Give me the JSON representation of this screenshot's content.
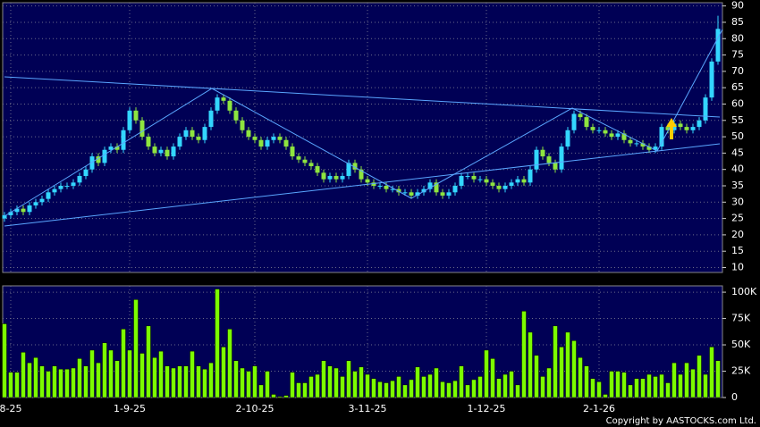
{
  "chart_data": {
    "type": "candlestick",
    "categories": [
      null,
      "8-25",
      null,
      null,
      null,
      null,
      null,
      null,
      null,
      null,
      null,
      null,
      null,
      null,
      null,
      null,
      null,
      null,
      null,
      null,
      "1-9-25",
      null,
      null,
      null,
      null,
      null,
      null,
      null,
      null,
      null,
      null,
      null,
      null,
      null,
      null,
      null,
      null,
      null,
      null,
      null,
      "2-10-25",
      null,
      null,
      null,
      null,
      null,
      null,
      null,
      null,
      null,
      null,
      null,
      null,
      null,
      null,
      null,
      null,
      null,
      "3-11-25",
      null,
      null,
      null,
      null,
      null,
      null,
      null,
      null,
      null,
      null,
      null,
      null,
      null,
      null,
      null,
      null,
      null,
      null,
      "1-12-25",
      null,
      null,
      null,
      null,
      null,
      null,
      null,
      null,
      null,
      null,
      null,
      null,
      null,
      null,
      null,
      null,
      null,
      "2-1-26",
      null,
      null,
      null,
      null,
      null,
      null,
      null,
      null,
      null,
      null,
      null,
      null,
      null,
      null,
      null,
      null,
      null,
      null,
      null
    ],
    "open": [
      25,
      26,
      27,
      28,
      27,
      29,
      30,
      31,
      33,
      34,
      35,
      35,
      36,
      38,
      40,
      44,
      42,
      46,
      47,
      46,
      52,
      58,
      55,
      50,
      47,
      45,
      46,
      44,
      47,
      50,
      52,
      50,
      49,
      53,
      58,
      62,
      61,
      58,
      55,
      52,
      50,
      49,
      47,
      49,
      50,
      49,
      47,
      44,
      43,
      42,
      41,
      39,
      37,
      38,
      37,
      38,
      42,
      40,
      37,
      36,
      35,
      35,
      34,
      34,
      33,
      33,
      32,
      33,
      34,
      36,
      33,
      32,
      33,
      35,
      38,
      38,
      37,
      37,
      36,
      35,
      34,
      35,
      36,
      37,
      36,
      40,
      46,
      44,
      42,
      40,
      47,
      52,
      57,
      56,
      53,
      52,
      52,
      51,
      50,
      51,
      49,
      48,
      48,
      47,
      46,
      47,
      53,
      52,
      54,
      53,
      52,
      53,
      55,
      62,
      73
    ],
    "high": [
      27,
      28,
      29,
      29,
      30,
      31,
      32,
      34,
      35,
      36,
      36,
      37,
      39,
      41,
      45,
      45,
      47,
      48,
      48,
      53,
      59,
      59,
      56,
      51,
      48,
      47,
      47,
      48,
      51,
      53,
      53,
      51,
      54,
      59,
      63,
      63,
      62,
      59,
      56,
      53,
      51,
      50,
      50,
      51,
      51,
      50,
      48,
      45,
      44,
      43,
      42,
      40,
      39,
      39,
      39,
      43,
      43,
      41,
      38,
      37,
      36,
      36,
      35,
      35,
      34,
      34,
      34,
      35,
      37,
      37,
      34,
      34,
      36,
      39,
      39,
      39,
      38,
      38,
      37,
      36,
      36,
      37,
      38,
      38,
      41,
      47,
      47,
      45,
      43,
      48,
      53,
      58,
      58,
      57,
      54,
      53,
      53,
      52,
      52,
      52,
      50,
      49,
      49,
      48,
      48,
      54,
      54,
      55,
      55,
      54,
      54,
      56,
      63,
      74,
      87
    ],
    "low": [
      24,
      25,
      26,
      26,
      26,
      28,
      29,
      30,
      32,
      33,
      34,
      34,
      35,
      37,
      39,
      41,
      41,
      45,
      45,
      45,
      51,
      54,
      49,
      46,
      44,
      44,
      43,
      43,
      46,
      49,
      49,
      48,
      48,
      52,
      57,
      60,
      57,
      54,
      51,
      49,
      48,
      46,
      46,
      48,
      48,
      46,
      43,
      42,
      41,
      40,
      38,
      36,
      36,
      36,
      36,
      37,
      39,
      36,
      35,
      34,
      34,
      33,
      33,
      32,
      32,
      31,
      31,
      32,
      33,
      32,
      31,
      31,
      32,
      34,
      37,
      36,
      36,
      35,
      34,
      33,
      33,
      34,
      35,
      35,
      35,
      39,
      43,
      41,
      39,
      39,
      46,
      51,
      55,
      52,
      51,
      51,
      50,
      49,
      49,
      48,
      47,
      47,
      46,
      45,
      45,
      46,
      51,
      51,
      52,
      51,
      51,
      52,
      54,
      61,
      72
    ],
    "close": [
      26,
      27,
      28,
      27,
      29,
      30,
      31,
      33,
      34,
      35,
      35,
      36,
      38,
      40,
      44,
      42,
      46,
      47,
      46,
      52,
      58,
      55,
      50,
      47,
      45,
      46,
      44,
      47,
      50,
      52,
      50,
      49,
      53,
      58,
      62,
      61,
      58,
      55,
      52,
      50,
      49,
      47,
      49,
      50,
      49,
      47,
      44,
      43,
      42,
      41,
      39,
      37,
      38,
      37,
      38,
      42,
      40,
      37,
      36,
      35,
      35,
      34,
      34,
      33,
      33,
      32,
      33,
      34,
      36,
      33,
      32,
      33,
      35,
      38,
      38,
      37,
      37,
      36,
      35,
      34,
      35,
      36,
      37,
      36,
      40,
      46,
      44,
      42,
      40,
      47,
      52,
      57,
      56,
      53,
      52,
      52,
      51,
      50,
      51,
      49,
      48,
      48,
      47,
      46,
      47,
      53,
      52,
      54,
      53,
      52,
      53,
      55,
      62,
      73,
      83
    ],
    "volume": [
      70000,
      24000,
      24000,
      43000,
      33000,
      38000,
      30000,
      25000,
      30000,
      27000,
      27000,
      28000,
      37000,
      30000,
      45000,
      33000,
      52000,
      45000,
      35000,
      65000,
      45000,
      93000,
      42000,
      68000,
      38000,
      44000,
      30000,
      28000,
      30000,
      30000,
      44000,
      30000,
      27000,
      33000,
      103000,
      48000,
      65000,
      35000,
      28000,
      25000,
      30000,
      12000,
      25000,
      3000,
      1000,
      2000,
      24000,
      14000,
      14000,
      20000,
      22000,
      35000,
      30000,
      28000,
      20000,
      35000,
      25000,
      29000,
      22000,
      18000,
      15000,
      14000,
      16000,
      20000,
      12000,
      17000,
      29000,
      20000,
      22000,
      28000,
      15000,
      14000,
      16000,
      30000,
      12000,
      17000,
      20000,
      45000,
      37000,
      18000,
      22000,
      25000,
      12000,
      82000,
      62000,
      40000,
      20000,
      28000,
      68000,
      48000,
      62000,
      54000,
      38000,
      30000,
      18000,
      15000,
      3000,
      25000,
      25000,
      24000,
      12000,
      18000,
      18000,
      22000,
      20000,
      22000,
      14000,
      33000,
      22000,
      33000,
      27000,
      40000,
      22000,
      48000,
      35000
    ],
    "up_color": "#33d6ff",
    "down_color": "#8ee53f",
    "volume_color": "#7cfc00",
    "ylim": [
      8.5,
      91
    ],
    "yticks": [
      10,
      15,
      20,
      25,
      30,
      35,
      40,
      45,
      50,
      55,
      60,
      65,
      70,
      75,
      80,
      85,
      90
    ],
    "y2lim": [
      0,
      106000
    ],
    "y2ticks": [
      0,
      {
        "value": 25000,
        "label": "25K"
      },
      {
        "value": 50000,
        "label": "50K"
      },
      {
        "value": 75000,
        "label": "75K"
      },
      {
        "value": 100000,
        "label": "100K"
      }
    ],
    "grid": true,
    "copyright": "Copyright by AASTOCKS.com Ltd."
  }
}
